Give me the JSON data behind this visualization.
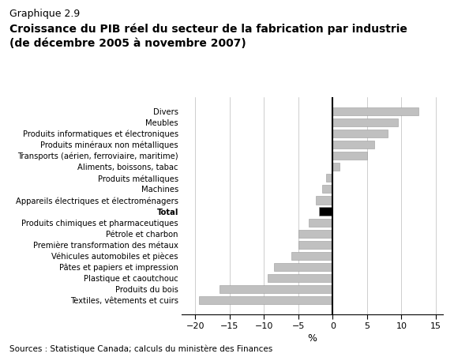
{
  "categories": [
    "Divers",
    "Meubles",
    "Produits informatiques et électroniques",
    "Produits minéraux non métalliques",
    "Transports (aérien, ferroviaire, maritime)",
    "Aliments, boissons, tabac",
    "Produits métalliques",
    "Machines",
    "Appareils électriques et électroménagers",
    "Total",
    "Produits chimiques et pharmaceutiques",
    "Pétrole et charbon",
    "Première transformation des métaux",
    "Véhicules automobiles et pièces",
    "Pâtes et papiers et impression",
    "Plastique et caoutchouc",
    "Produits du bois",
    "Textiles, vêtements et cuirs"
  ],
  "values": [
    12.5,
    9.5,
    8.0,
    6.0,
    5.0,
    1.0,
    -1.0,
    -1.5,
    -2.5,
    -2.0,
    -3.5,
    -5.0,
    -5.0,
    -6.0,
    -8.5,
    -9.5,
    -16.5,
    -19.5
  ],
  "colors": [
    "#c0c0c0",
    "#c0c0c0",
    "#c0c0c0",
    "#c0c0c0",
    "#c0c0c0",
    "#c0c0c0",
    "#c0c0c0",
    "#c0c0c0",
    "#c0c0c0",
    "#000000",
    "#c0c0c0",
    "#c0c0c0",
    "#c0c0c0",
    "#c0c0c0",
    "#c0c0c0",
    "#c0c0c0",
    "#c0c0c0",
    "#c0c0c0"
  ],
  "suptitle": "Graphique 2.9",
  "title_line1": "Croissance du PIB réel du secteur de la fabrication par industrie",
  "title_line2": "(de décembre 2005 à novembre 2007)",
  "xlabel": "%",
  "xlim": [
    -22,
    16
  ],
  "xticks": [
    -20,
    -15,
    -10,
    -5,
    0,
    5,
    10,
    15
  ],
  "source": "Sources : Statistique Canada; calculs du ministère des Finances",
  "bg_color": "#ffffff"
}
